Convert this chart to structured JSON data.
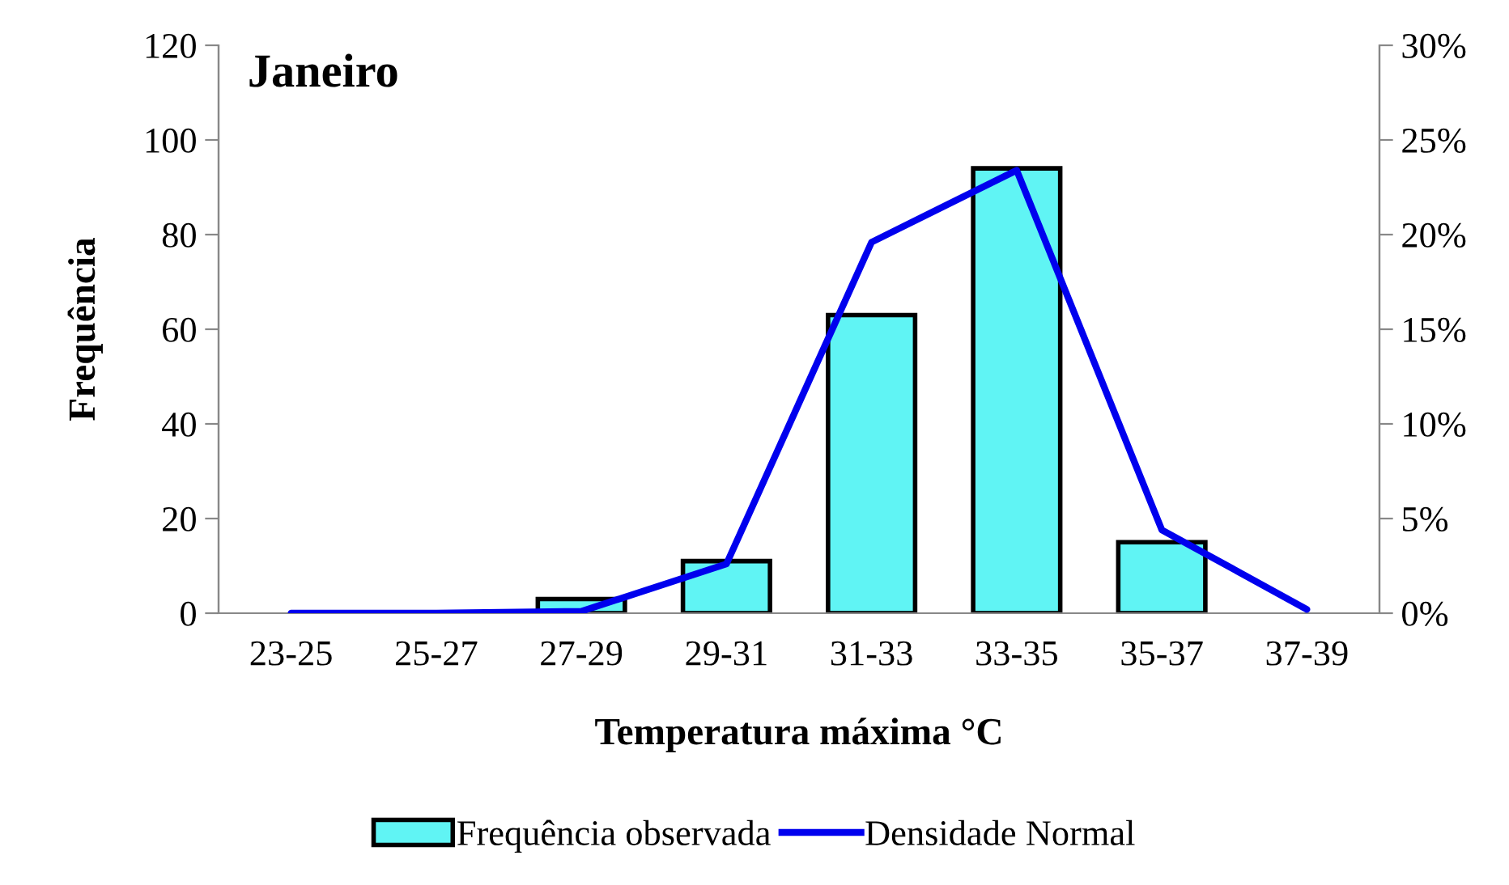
{
  "chart_data": {
    "type": "bar",
    "title": "Janeiro",
    "xlabel": "Temperatura máxima °C",
    "ylabel": "Frequência",
    "categories": [
      "23-25",
      "25-27",
      "27-29",
      "29-31",
      "31-33",
      "33-35",
      "35-37",
      "37-39"
    ],
    "series": [
      {
        "name": "Frequência observada",
        "color": "#60f4f4",
        "values": [
          0,
          0,
          3,
          11,
          63,
          94,
          15,
          null
        ]
      },
      {
        "name": "Densidade Normal",
        "type": "line",
        "axis": "y2",
        "color": "#0000ee",
        "values": [
          0,
          0,
          0.1,
          2.6,
          19.6,
          23.4,
          4.4,
          0.2
        ]
      }
    ],
    "ylim": [
      0,
      120
    ],
    "yticks": [
      0,
      20,
      40,
      60,
      80,
      100,
      120
    ],
    "y2lim": [
      0,
      30
    ],
    "y2ticks": [
      {
        "value": 0,
        "label": "0%"
      },
      {
        "value": 5,
        "label": "5%"
      },
      {
        "value": 10,
        "label": "10%"
      },
      {
        "value": 15,
        "label": "15%"
      },
      {
        "value": 20,
        "label": "20%"
      },
      {
        "value": 25,
        "label": "25%"
      },
      {
        "value": 30,
        "label": "30%"
      }
    ],
    "grid": false,
    "legend": "bottom"
  }
}
